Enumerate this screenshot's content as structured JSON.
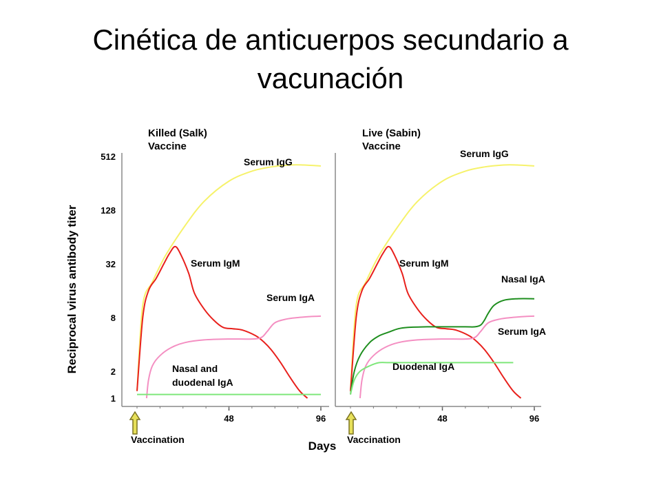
{
  "slide": {
    "title_line1": "Cinética de anticuerpos secundario a",
    "title_line2": "vacunación"
  },
  "chart_data": [
    {
      "type": "line",
      "panel_title": [
        "Killed (Salk)",
        "Vaccine"
      ],
      "ylabel": "Reciprocal virus antibody titer",
      "xlabel": "Days",
      "yscale": "log2",
      "ylim": [
        1,
        512
      ],
      "yticks": [
        1,
        2,
        8,
        32,
        128,
        512
      ],
      "xlim": [
        0,
        96
      ],
      "xticks": [
        48,
        96
      ],
      "marker_label": "Vaccination",
      "series": [
        {
          "name": "Serum IgG",
          "color": "#f6f26a",
          "x": [
            0,
            3,
            8,
            15,
            25,
            35,
            48,
            60,
            70,
            80,
            87,
            96
          ],
          "y": [
            1.2,
            11,
            20,
            40,
            85,
            160,
            270,
            350,
            390,
            410,
            410,
            400
          ]
        },
        {
          "name": "Serum IgM",
          "color": "#e8201c",
          "x": [
            0,
            3,
            6,
            10,
            14,
            17,
            20,
            23,
            27,
            30,
            35,
            40,
            45,
            50,
            55,
            62,
            66,
            70,
            75,
            80,
            85,
            89
          ],
          "y": [
            1.2,
            8,
            16,
            22,
            32,
            42,
            50,
            40,
            25,
            15,
            10,
            7.5,
            6.2,
            6,
            5.8,
            5,
            4.3,
            3.5,
            2.5,
            1.7,
            1.2,
            1
          ]
        },
        {
          "name": "Serum IgA",
          "color": "#f48fc2",
          "x": [
            5,
            6,
            8,
            12,
            18,
            25,
            35,
            48,
            60,
            65,
            68,
            72,
            78,
            84,
            90,
            96
          ],
          "y": [
            1,
            1.6,
            2.3,
            3,
            3.7,
            4.2,
            4.5,
            4.6,
            4.6,
            4.8,
            5.6,
            7,
            7.7,
            8,
            8.2,
            8.3
          ]
        },
        {
          "name": "Nasal and duodenal IgA",
          "color": "#7ee77a",
          "x": [
            0,
            96
          ],
          "y": [
            1.1,
            1.1
          ]
        }
      ]
    },
    {
      "type": "line",
      "panel_title": [
        "Live (Sabin)",
        "Vaccine"
      ],
      "xlim": [
        0,
        96
      ],
      "xticks": [
        48,
        96
      ],
      "marker_label": "Vaccination",
      "series": [
        {
          "name": "Serum IgG",
          "color": "#f6f26a",
          "x": [
            0,
            3,
            8,
            15,
            25,
            35,
            48,
            60,
            70,
            80,
            87,
            96
          ],
          "y": [
            1.2,
            11,
            20,
            40,
            85,
            160,
            270,
            350,
            390,
            410,
            410,
            400
          ]
        },
        {
          "name": "Serum IgM",
          "color": "#e8201c",
          "x": [
            0,
            3,
            6,
            10,
            14,
            17,
            20,
            23,
            27,
            30,
            35,
            40,
            45,
            50,
            55,
            62,
            66,
            70,
            75,
            80,
            85,
            89
          ],
          "y": [
            1.2,
            8,
            16,
            22,
            32,
            42,
            50,
            40,
            25,
            15,
            10,
            7.5,
            6.2,
            6,
            5.8,
            5,
            4.3,
            3.5,
            2.5,
            1.7,
            1.2,
            1
          ]
        },
        {
          "name": "Nasal IgA",
          "color": "#1e8e1e",
          "x": [
            0,
            2,
            5,
            10,
            15,
            20,
            25,
            30,
            40,
            50,
            60,
            65,
            68,
            70,
            72,
            75,
            80,
            87,
            96
          ],
          "y": [
            1.1,
            2,
            3,
            4.2,
            5,
            5.5,
            6,
            6.2,
            6.3,
            6.3,
            6.3,
            6.3,
            6.6,
            7.5,
            9,
            11,
            12.5,
            13,
            13
          ]
        },
        {
          "name": "Serum IgA",
          "color": "#f48fc2",
          "x": [
            5,
            6,
            8,
            12,
            18,
            25,
            35,
            48,
            60,
            65,
            68,
            72,
            78,
            84,
            90,
            96
          ],
          "y": [
            1,
            1.6,
            2.3,
            3,
            3.7,
            4.2,
            4.5,
            4.6,
            4.6,
            4.8,
            5.6,
            7,
            7.7,
            8,
            8.2,
            8.3
          ]
        },
        {
          "name": "Duodenal IgA",
          "color": "#7ee77a",
          "x": [
            0,
            2,
            5,
            10,
            15,
            20,
            30,
            48,
            60,
            75,
            85
          ],
          "y": [
            1.1,
            1.6,
            2,
            2.3,
            2.5,
            2.5,
            2.5,
            2.5,
            2.5,
            2.5,
            2.5
          ]
        }
      ]
    }
  ],
  "colors": {
    "arrow_fill": "#e7e05a",
    "arrow_stroke": "#7a7220",
    "axis": "#888888"
  }
}
